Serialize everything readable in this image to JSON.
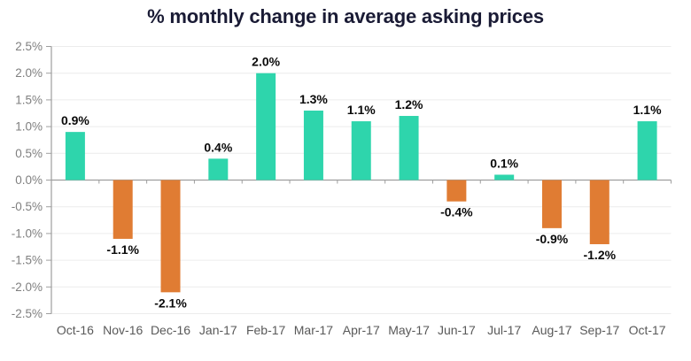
{
  "chart_data": {
    "type": "bar",
    "title": "% monthly change in average asking prices",
    "categories": [
      "Oct-16",
      "Nov-16",
      "Dec-16",
      "Jan-17",
      "Feb-17",
      "Mar-17",
      "Apr-17",
      "May-17",
      "Jun-17",
      "Jul-17",
      "Aug-17",
      "Sep-17",
      "Oct-17"
    ],
    "values": [
      0.9,
      -1.1,
      -2.1,
      0.4,
      2.0,
      1.3,
      1.1,
      1.2,
      -0.4,
      0.1,
      -0.9,
      -1.2,
      1.1
    ],
    "data_labels": [
      "0.9%",
      "-1.1%",
      "-2.1%",
      "0.4%",
      "2.0%",
      "1.3%",
      "1.1%",
      "1.2%",
      "-0.4%",
      "0.1%",
      "-0.9%",
      "-1.2%",
      "1.1%"
    ],
    "xlabel": "",
    "ylabel": "",
    "ylim": [
      -2.5,
      2.5
    ],
    "ytick_step": 0.5,
    "ytick_labels": [
      "2.5%",
      "2.0%",
      "1.5%",
      "1.0%",
      "0.5%",
      "0.0%",
      "-0.5%",
      "-1.0%",
      "-1.5%",
      "-2.0%",
      "-2.5%"
    ],
    "grid": "horizontal",
    "legend": "none",
    "colors": {
      "positive_bar": "#2ed5ac",
      "negative_bar": "#e07c33",
      "title": "#1a1b35",
      "axis": "#9e9e9e",
      "gridline": "#ececec",
      "ytick_label": "#7f7f7f",
      "xtick_label": "#595959",
      "data_label": "#0a0a0a",
      "background": "#ffffff"
    }
  }
}
